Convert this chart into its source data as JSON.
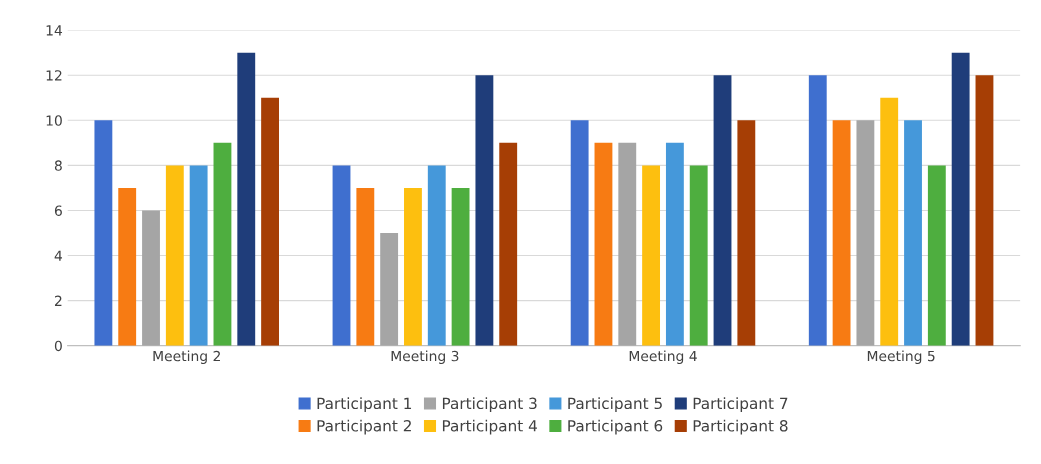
{
  "chart_data": {
    "type": "bar",
    "categories": [
      "Meeting 2",
      "Meeting 3",
      "Meeting 4",
      "Meeting 5"
    ],
    "series": [
      {
        "name": "Participant 1",
        "color": "#3f6fcf",
        "values": [
          10,
          8,
          10,
          12
        ]
      },
      {
        "name": "Participant 2",
        "color": "#f77b13",
        "values": [
          7,
          7,
          9,
          10
        ]
      },
      {
        "name": "Participant 3",
        "color": "#a5a5a5",
        "values": [
          6,
          5,
          9,
          10
        ]
      },
      {
        "name": "Participant 4",
        "color": "#fdbf0f",
        "values": [
          8,
          7,
          8,
          11
        ]
      },
      {
        "name": "Participant 5",
        "color": "#4598da",
        "values": [
          8,
          8,
          9,
          10
        ]
      },
      {
        "name": "Participant 6",
        "color": "#4eae3f",
        "values": [
          9,
          7,
          8,
          8
        ]
      },
      {
        "name": "Participant 7",
        "color": "#1f3d7a",
        "values": [
          13,
          12,
          12,
          13
        ]
      },
      {
        "name": "Participant 8",
        "color": "#a63e05",
        "values": [
          11,
          9,
          10,
          12
        ]
      }
    ],
    "ylim": [
      0,
      14
    ],
    "yticks": [
      0,
      2,
      4,
      6,
      8,
      10,
      12,
      14
    ],
    "grid": "y",
    "legend": "bottom"
  }
}
